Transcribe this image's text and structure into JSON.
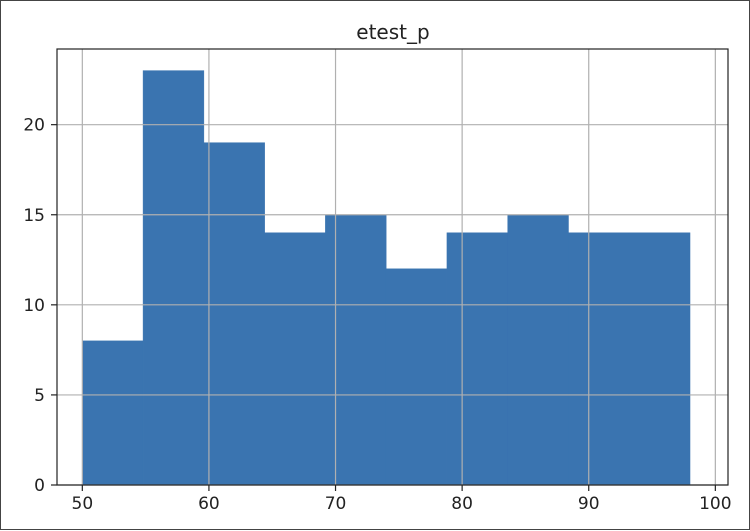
{
  "chart_data": {
    "type": "bar",
    "title": "etest_p",
    "xlabel": "",
    "ylabel": "",
    "bin_edges": [
      50.0,
      54.8,
      59.6,
      64.4,
      69.2,
      74.0,
      78.8,
      83.6,
      88.4,
      93.2,
      98.0
    ],
    "values": [
      8,
      23,
      19,
      14,
      15,
      12,
      14,
      15,
      14,
      14
    ],
    "xlim": [
      48,
      101
    ],
    "ylim": [
      0,
      24.2
    ],
    "xticks": [
      50,
      60,
      70,
      80,
      90,
      100
    ],
    "yticks": [
      0,
      5,
      10,
      15,
      20
    ],
    "grid": true,
    "bar_color": "#3A74B0",
    "grid_color": "#B0B0B0"
  }
}
